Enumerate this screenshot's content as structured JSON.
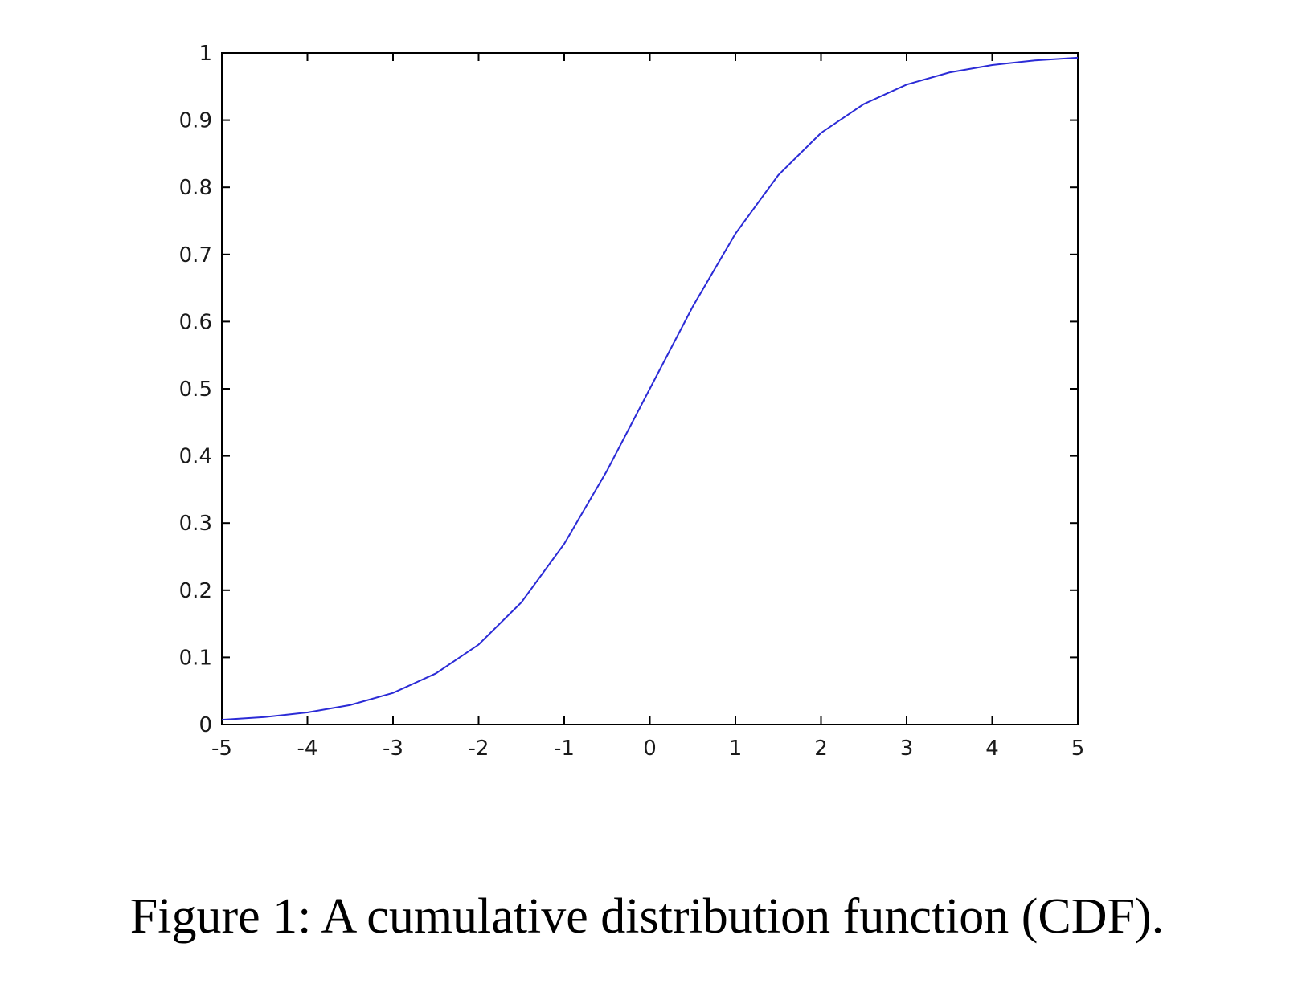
{
  "caption": "Figure 1: A cumulative distribution function (CDF).",
  "chart_data": {
    "type": "line",
    "title": "",
    "xlabel": "",
    "ylabel": "",
    "xlim": [
      -5,
      5
    ],
    "ylim": [
      0,
      1
    ],
    "xticks": [
      -5,
      -4,
      -3,
      -2,
      -1,
      0,
      1,
      2,
      3,
      4,
      5
    ],
    "xtick_labels": [
      "-5",
      "-4",
      "-3",
      "-2",
      "-1",
      "0",
      "1",
      "2",
      "3",
      "4",
      "5"
    ],
    "yticks": [
      0,
      0.1,
      0.2,
      0.3,
      0.4,
      0.5,
      0.6,
      0.7,
      0.8,
      0.9,
      1
    ],
    "ytick_labels": [
      "0",
      "0.1",
      "0.2",
      "0.3",
      "0.4",
      "0.5",
      "0.6",
      "0.7",
      "0.8",
      "0.9",
      "1"
    ],
    "grid": false,
    "line_color": "#2b2bd6",
    "series": [
      {
        "x": [
          -5,
          -4.5,
          -4,
          -3.5,
          -3,
          -2.5,
          -2,
          -1.5,
          -1,
          -0.5,
          0,
          0.5,
          1,
          1.5,
          2,
          2.5,
          3,
          3.5,
          4,
          4.5,
          5
        ],
        "y": [
          0.007,
          0.011,
          0.018,
          0.029,
          0.047,
          0.076,
          0.119,
          0.182,
          0.269,
          0.378,
          0.5,
          0.622,
          0.731,
          0.818,
          0.881,
          0.924,
          0.953,
          0.971,
          0.982,
          0.989,
          0.993
        ]
      }
    ]
  }
}
